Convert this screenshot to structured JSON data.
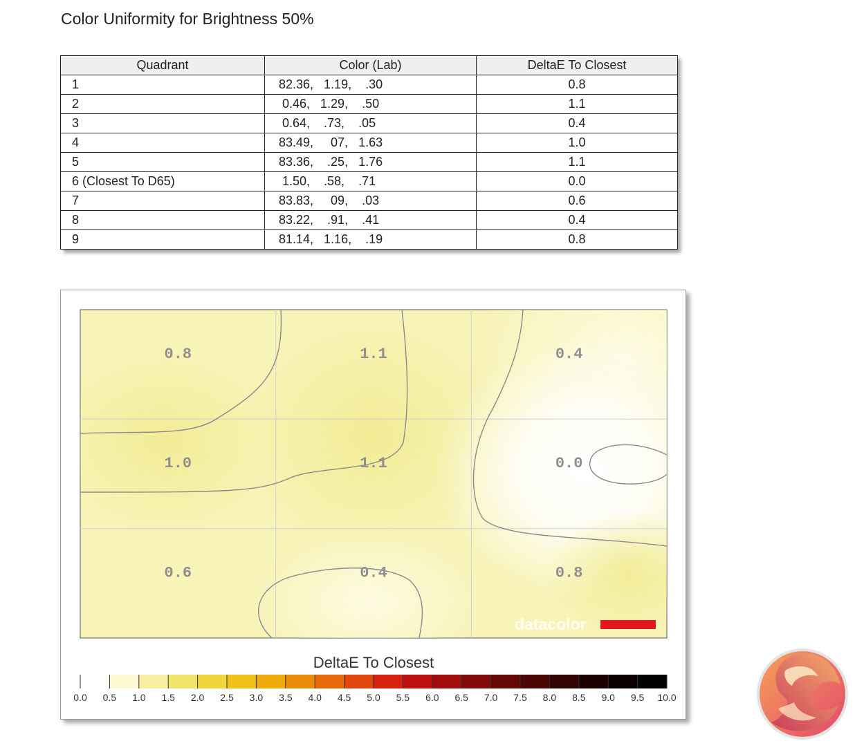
{
  "page": {
    "title": "Color Uniformity for Brightness 50%"
  },
  "table": {
    "headers": [
      "Quadrant",
      "Color (Lab)",
      "DeltaE To Closest"
    ],
    "rows": [
      {
        "quadrant": "1",
        "lab": "82.36,   1.19,    .30",
        "delta": "0.8"
      },
      {
        "quadrant": "2",
        "lab": " 0.46,   1.29,    .50",
        "delta": "1.1"
      },
      {
        "quadrant": "3",
        "lab": " 0.64,    .73,    .05",
        "delta": "0.4"
      },
      {
        "quadrant": "4",
        "lab": "83.49,     07,   1.63",
        "delta": "1.0"
      },
      {
        "quadrant": "5",
        "lab": "83.36,    .25,   1.76",
        "delta": "1.1"
      },
      {
        "quadrant": "6 (Closest To D65)",
        "lab": " 1.50,    .58,    .71",
        "delta": "0.0"
      },
      {
        "quadrant": "7",
        "lab": "83.83,     09,    .03",
        "delta": "0.6"
      },
      {
        "quadrant": "8",
        "lab": "83.22,    .91,    .41",
        "delta": "0.4"
      },
      {
        "quadrant": "9",
        "lab": "81.14,   1.16,    .19",
        "delta": "0.8"
      }
    ]
  },
  "chart_data": {
    "type": "heatmap",
    "grid": [
      3,
      3
    ],
    "values": [
      [
        0.8,
        1.1,
        0.4
      ],
      [
        1.0,
        1.1,
        0.0
      ],
      [
        0.6,
        0.4,
        0.8
      ]
    ],
    "cell_labels": [
      [
        "0.8",
        "1.1",
        "0.4"
      ],
      [
        "1.0",
        "1.1",
        "0.0"
      ],
      [
        "0.6",
        "0.4",
        "0.8"
      ]
    ],
    "contour_levels": [
      0.2,
      0.5,
      1.0
    ],
    "colorbar": {
      "title": "DeltaE To Closest",
      "range": [
        0,
        10
      ],
      "ticks": [
        "0.0",
        "0.5",
        "1.0",
        "1.5",
        "2.0",
        "2.5",
        "3.0",
        "3.5",
        "4.0",
        "4.5",
        "5.0",
        "5.5",
        "6.0",
        "6.5",
        "7.0",
        "7.5",
        "8.0",
        "8.5",
        "9.0",
        "9.5",
        "10.0"
      ]
    },
    "brand": "datacolor",
    "colors": {
      "scale": [
        "#ffffff",
        "#fdf9d2",
        "#f7f0a2",
        "#f1e46d",
        "#f0d63c",
        "#f0c21a",
        "#efaa0c",
        "#ec8d0a",
        "#e86c0b",
        "#df470d",
        "#d4220f",
        "#bf1110",
        "#a10d0c",
        "#820a09",
        "#650706",
        "#4a0504",
        "#310302",
        "#1c0101",
        "#0a0000",
        "#000000"
      ],
      "brand_bar": "#e4161f"
    }
  }
}
